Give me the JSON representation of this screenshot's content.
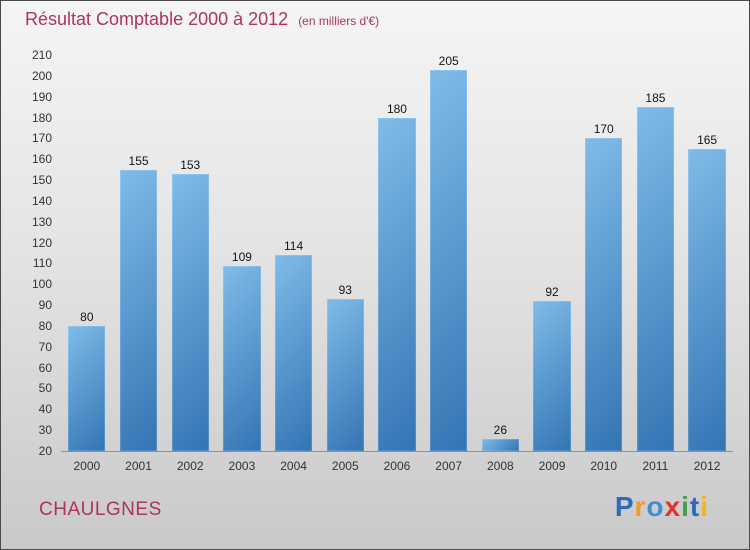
{
  "chart_data": {
    "type": "bar",
    "title": "Résultat Comptable 2000 à 2012",
    "subtitle": "(en milliers d'€)",
    "categories": [
      "2000",
      "2001",
      "2002",
      "2003",
      "2004",
      "2005",
      "2006",
      "2007",
      "2008",
      "2009",
      "2010",
      "2011",
      "2012"
    ],
    "values": [
      80,
      155,
      153,
      109,
      114,
      93,
      180,
      205,
      26,
      92,
      170,
      185,
      165
    ],
    "xlabel": "",
    "ylabel": "",
    "ylim": [
      20,
      210
    ],
    "ytick_step": 10,
    "grid": false,
    "legend": "none"
  },
  "colors": {
    "title": "#ad3360",
    "bar_top": "#7fbce9",
    "bar_bottom": "#3374b4"
  },
  "footer": {
    "town": "CHAULGNES"
  },
  "logo": {
    "name": "Proxiti",
    "letters": [
      {
        "char": "P",
        "color": "#2b6cb8"
      },
      {
        "char": "r",
        "color": "#f49a1c"
      },
      {
        "char": "o",
        "color": "#3f8fd2"
      },
      {
        "char": "x",
        "color": "#e2322a"
      },
      {
        "char": "i",
        "color": "#44a047"
      },
      {
        "char": "t",
        "color": "#2b6cb8"
      },
      {
        "char": "i",
        "color": "#f4b41c"
      }
    ]
  }
}
